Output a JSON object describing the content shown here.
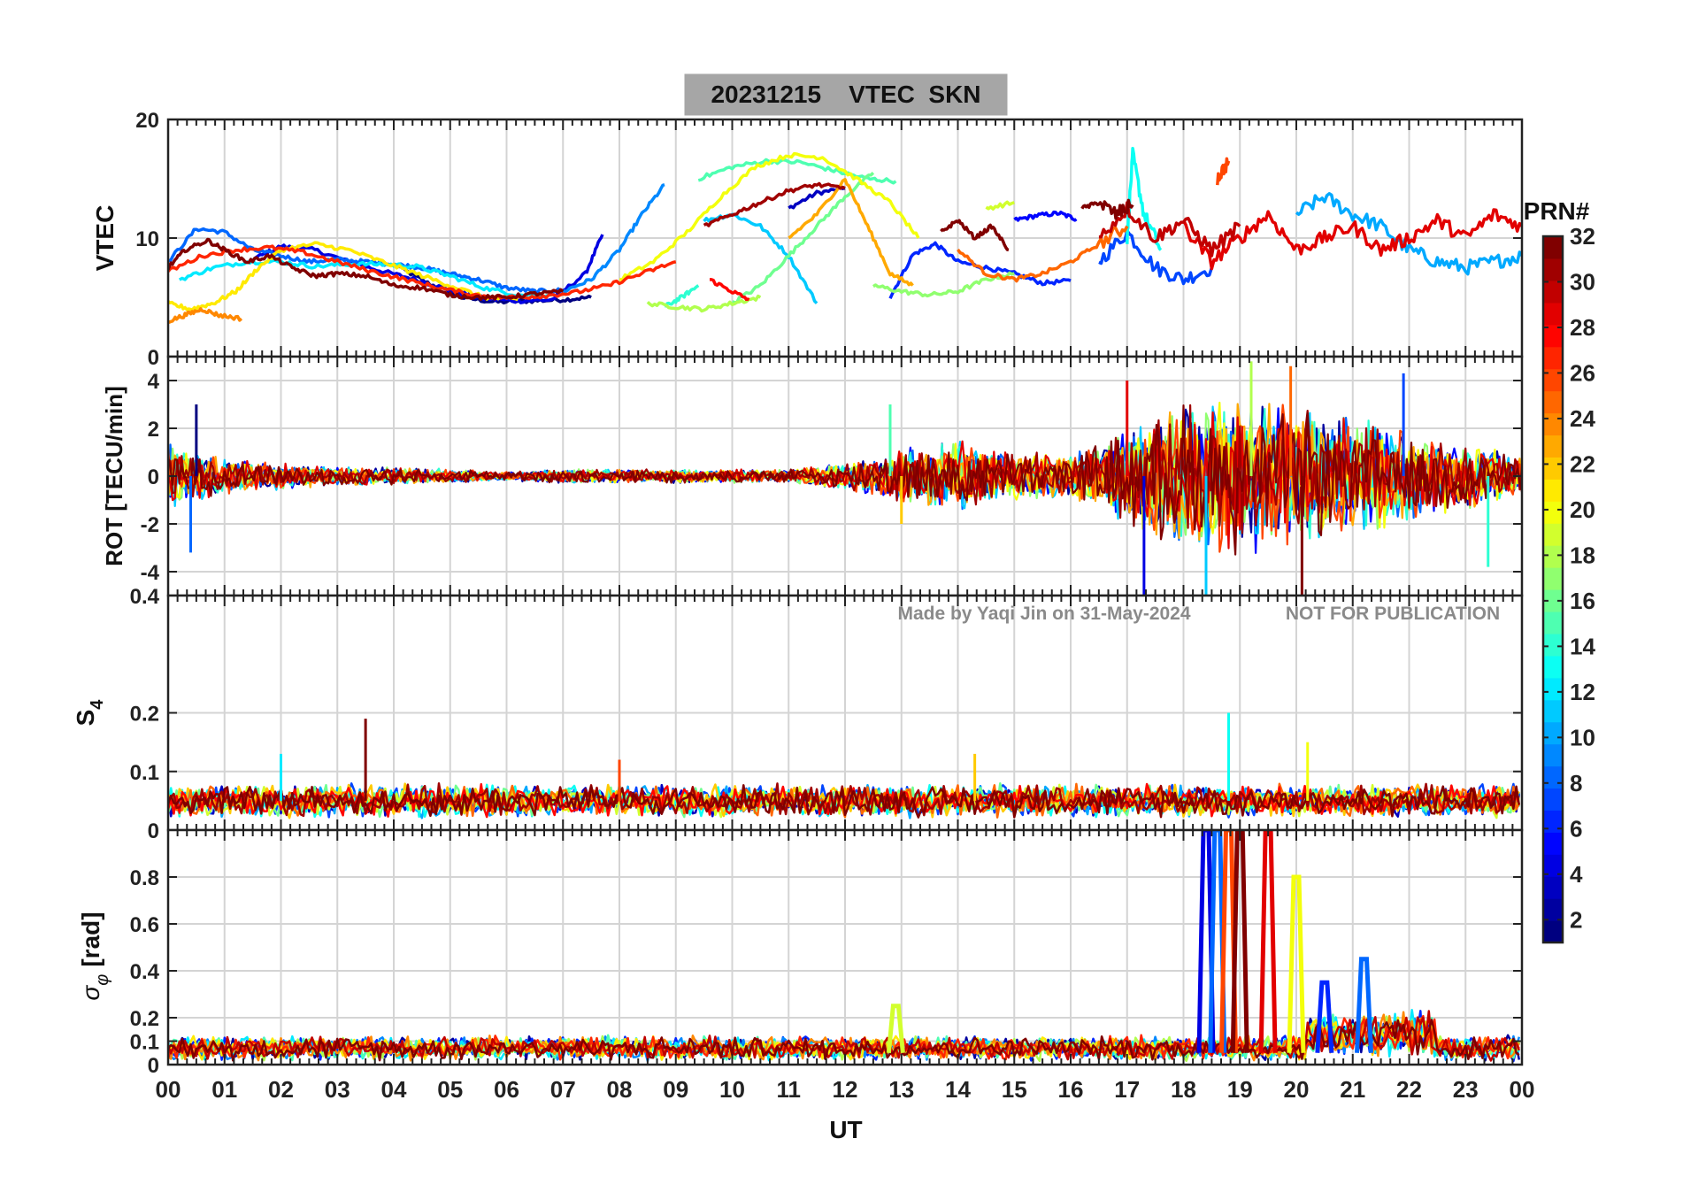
{
  "title": "20231215    VTEC  SKN",
  "watermark_left": "Made by Yaqi Jin on 31-May-2024",
  "watermark_right": "NOT FOR PUBLICATION",
  "colorbar": {
    "label": "PRN#",
    "ticks": [
      "2",
      "4",
      "6",
      "8",
      "10",
      "12",
      "14",
      "16",
      "18",
      "20",
      "22",
      "24",
      "26",
      "28",
      "30",
      "32"
    ],
    "range": [
      1,
      32
    ],
    "colormap": "jet"
  },
  "x_axis": {
    "label": "UT",
    "range": [
      0,
      24
    ],
    "ticks": [
      "00",
      "01",
      "02",
      "03",
      "04",
      "05",
      "06",
      "07",
      "08",
      "09",
      "10",
      "11",
      "12",
      "13",
      "14",
      "15",
      "16",
      "17",
      "18",
      "19",
      "20",
      "21",
      "22",
      "23",
      "00"
    ]
  },
  "panels": {
    "vtec": {
      "ylabel": "VTEC",
      "ylim": [
        0,
        20
      ],
      "ticks": [
        "0",
        "10",
        "20"
      ],
      "tick_values": [
        0,
        10,
        20
      ]
    },
    "rot": {
      "ylabel": "ROT [TECU/min]",
      "ylim": [
        -5,
        5
      ],
      "ticks": [
        "-4",
        "-2",
        "0",
        "2",
        "4"
      ],
      "tick_values": [
        -4,
        -2,
        0,
        2,
        4
      ]
    },
    "s4": {
      "ylabel_main": "S",
      "ylabel_sub": "4",
      "ylim": [
        0,
        0.4
      ],
      "ticks": [
        "0",
        "0.1",
        "0.2",
        "0.4"
      ],
      "tick_values": [
        0,
        0.1,
        0.2,
        0.4
      ]
    },
    "sigma": {
      "ylabel_main": "σ",
      "ylabel_sub": "φ",
      "ylabel_unit": "[rad]",
      "ylim": [
        0,
        1
      ],
      "ticks": [
        "0",
        "0.1",
        "0.2",
        "0.4",
        "0.6",
        "0.8"
      ],
      "tick_values": [
        0,
        0.1,
        0.2,
        0.4,
        0.6,
        0.8
      ]
    }
  },
  "chart_data": {
    "type": "line",
    "title": "20231215    VTEC  SKN",
    "xlabel": "UT",
    "xlim": [
      0,
      24
    ],
    "series_color_by": "PRN#",
    "vtec_arcs": [
      {
        "prn": 1,
        "x": [
          4.0,
          4.6,
          5.2,
          5.8,
          6.4,
          7.0,
          7.5
        ],
        "y": [
          7.8,
          6.2,
          5.0,
          4.6,
          4.7,
          4.8,
          5.0
        ]
      },
      {
        "prn": 3,
        "x": [
          11.0,
          11.5,
          12.0
        ],
        "y": [
          12.5,
          13.8,
          14.2
        ]
      },
      {
        "prn": 4,
        "x": [
          1.5,
          2.0,
          2.6,
          3.2,
          3.8,
          4.4,
          5.0,
          5.6,
          6.2,
          6.8,
          7.4,
          7.7
        ],
        "y": [
          8.2,
          9.3,
          9.0,
          8.0,
          7.2,
          6.5,
          5.6,
          4.9,
          4.7,
          4.8,
          7.0,
          10.3
        ]
      },
      {
        "prn": 5,
        "x": [
          15.0,
          15.4,
          15.8,
          16.1
        ],
        "y": [
          11.5,
          11.9,
          12.1,
          11.6
        ]
      },
      {
        "prn": 6,
        "x": [
          12.8,
          13.2,
          13.6,
          14.0,
          14.5,
          15.0,
          15.5,
          16.0
        ],
        "y": [
          5.0,
          8.6,
          9.5,
          8.0,
          7.5,
          7.0,
          6.2,
          6.4
        ]
      },
      {
        "prn": 7,
        "x": [
          16.5,
          17.0,
          17.5,
          18.0,
          18.5
        ],
        "y": [
          8.0,
          10.5,
          7.5,
          6.5,
          7.5
        ]
      },
      {
        "prn": 8,
        "x": [
          0.0,
          0.5,
          1.0,
          1.5,
          2.0,
          2.5,
          3.0,
          3.5,
          4.0,
          4.5,
          5.0,
          5.5,
          6.0,
          6.5,
          7.0
        ],
        "y": [
          8.0,
          10.8,
          10.5,
          9.0,
          8.5,
          8.0,
          8.2,
          8.0,
          7.8,
          7.5,
          7.0,
          6.5,
          5.8,
          5.5,
          5.6
        ]
      },
      {
        "prn": 9,
        "x": [
          7.0,
          7.5,
          8.0,
          8.4,
          8.8
        ],
        "y": [
          5.5,
          6.5,
          9.0,
          12.0,
          14.5
        ]
      },
      {
        "prn": 10,
        "x": [
          20.0,
          20.5,
          21.0,
          21.5,
          22.0,
          22.5,
          23.0,
          23.5,
          24.0
        ],
        "y": [
          12.0,
          13.5,
          12.0,
          11.0,
          9.0,
          8.0,
          7.5,
          8.0,
          8.5
        ]
      },
      {
        "prn": 11,
        "x": [
          9.5,
          10.0,
          10.5,
          11.0,
          11.5
        ],
        "y": [
          11.5,
          12.0,
          11.0,
          8.5,
          4.5
        ]
      },
      {
        "prn": 12,
        "x": [
          0.2,
          0.8,
          1.4,
          2.0,
          2.6,
          3.2,
          3.8,
          4.4,
          5.0,
          5.6,
          6.2,
          6.8
        ],
        "y": [
          6.5,
          7.5,
          8.0,
          8.0,
          7.6,
          7.8,
          7.8,
          7.6,
          6.8,
          5.8,
          5.2,
          5.2
        ]
      },
      {
        "prn": 13,
        "x": [
          17.0,
          17.1,
          17.3,
          17.6
        ],
        "y": [
          10.0,
          17.0,
          12.0,
          9.0
        ]
      },
      {
        "prn": 14,
        "x": [
          8.8,
          9.1,
          9.4
        ],
        "y": [
          4.2,
          5.0,
          6.0
        ]
      },
      {
        "prn": 15,
        "x": [
          9.4,
          10.0,
          10.6,
          11.2,
          11.8,
          12.4,
          12.9
        ],
        "y": [
          15.0,
          16.0,
          16.5,
          16.4,
          15.7,
          15.0,
          14.8
        ]
      },
      {
        "prn": 16,
        "x": [
          10.0,
          10.5,
          11.0,
          11.5,
          12.0,
          12.5
        ],
        "y": [
          4.5,
          6.0,
          8.5,
          11.0,
          13.5,
          15.5
        ]
      },
      {
        "prn": 17,
        "x": [
          12.5,
          13.0,
          13.5,
          14.0,
          14.5,
          15.0
        ],
        "y": [
          6.0,
          5.5,
          5.2,
          5.5,
          6.5,
          7.0
        ]
      },
      {
        "prn": 18,
        "x": [
          8.5,
          9.0,
          9.5,
          10.0,
          10.5
        ],
        "y": [
          4.5,
          4.2,
          4.0,
          4.5,
          5.0
        ]
      },
      {
        "prn": 19,
        "x": [
          14.5,
          15.0
        ],
        "y": [
          12.5,
          13.0
        ]
      },
      {
        "prn": 20,
        "x": [
          8.0,
          8.6,
          9.2,
          9.8,
          10.4,
          11.0,
          11.6,
          12.2,
          12.8,
          13.3
        ],
        "y": [
          6.5,
          8.0,
          10.5,
          13.5,
          16.0,
          17.0,
          16.8,
          15.0,
          13.0,
          10.0
        ]
      },
      {
        "prn": 21,
        "x": [
          0.0,
          0.4,
          0.8,
          1.2,
          1.6,
          2.0,
          2.6,
          3.2,
          3.8,
          4.4,
          5.0,
          5.6,
          6.2
        ],
        "y": [
          4.5,
          4.0,
          4.5,
          5.5,
          7.5,
          9.0,
          9.5,
          9.0,
          8.0,
          7.0,
          6.0,
          5.0,
          4.8
        ]
      },
      {
        "prn": 23,
        "x": [
          11.0,
          11.5,
          12.0,
          12.4,
          12.8,
          13.2
        ],
        "y": [
          10.0,
          12.0,
          15.0,
          11.0,
          7.0,
          6.0
        ]
      },
      {
        "prn": 24,
        "x": [
          0.0,
          0.3,
          0.6,
          0.9,
          1.3
        ],
        "y": [
          3.0,
          3.5,
          4.0,
          3.5,
          3.2
        ]
      },
      {
        "prn": 25,
        "x": [
          14.0,
          14.5,
          15.0,
          15.5,
          16.0,
          16.5,
          17.0
        ],
        "y": [
          9.0,
          7.0,
          6.5,
          7.0,
          8.0,
          9.5,
          11.0
        ]
      },
      {
        "prn": 26,
        "x": [
          18.6,
          18.8
        ],
        "y": [
          15.0,
          16.5
        ]
      },
      {
        "prn": 27,
        "x": [
          0.0,
          0.6,
          1.2,
          1.8,
          2.4,
          3.0,
          3.6,
          4.2,
          4.8,
          5.4,
          6.0,
          6.6,
          7.2,
          7.8,
          8.4,
          9.0
        ],
        "y": [
          7.2,
          8.5,
          9.0,
          9.2,
          8.8,
          8.0,
          7.2,
          6.5,
          5.8,
          5.2,
          5.0,
          5.1,
          5.4,
          6.0,
          7.0,
          8.0
        ]
      },
      {
        "prn": 28,
        "x": [
          9.6,
          10.0,
          10.3
        ],
        "y": [
          6.5,
          5.5,
          4.8
        ]
      },
      {
        "prn": 29,
        "x": [
          18.0,
          18.5,
          19.0,
          19.5,
          20.0,
          20.5,
          21.0,
          21.5,
          22.0,
          22.5,
          23.0,
          23.5,
          24.0
        ],
        "y": [
          11.0,
          8.0,
          10.0,
          12.0,
          9.0,
          10.0,
          11.0,
          9.0,
          10.0,
          11.5,
          10.0,
          12.0,
          11.0
        ]
      },
      {
        "prn": 30,
        "x": [
          16.5,
          17.0,
          17.5,
          18.0,
          18.5,
          19.0
        ],
        "y": [
          10.0,
          12.5,
          10.0,
          11.5,
          9.0,
          11.0
        ]
      },
      {
        "prn": 31,
        "x": [
          9.5,
          10.0,
          10.5,
          11.0,
          11.5,
          12.0
        ],
        "y": [
          11.0,
          12.0,
          13.0,
          14.0,
          14.5,
          14.2
        ]
      },
      {
        "prn": 32,
        "x": [
          0.0,
          0.3,
          0.7,
          1.0,
          1.4,
          1.8,
          2.2,
          2.6,
          3.0,
          3.5,
          4.0,
          4.5,
          5.0,
          5.5,
          6.0,
          6.5,
          7.0
        ],
        "y": [
          7.5,
          9.0,
          9.8,
          9.0,
          8.0,
          8.5,
          7.5,
          6.8,
          7.0,
          6.8,
          6.0,
          5.8,
          5.2,
          5.0,
          5.0,
          5.3,
          5.5
        ]
      },
      {
        "prn": 32,
        "x": [
          13.7,
          14.0,
          14.3,
          14.6,
          14.9
        ],
        "y": [
          10.5,
          11.5,
          10.0,
          11.0,
          9.0
        ]
      },
      {
        "prn": 32,
        "x": [
          16.2,
          16.5,
          16.8,
          17.1
        ],
        "y": [
          12.5,
          13.0,
          12.0,
          12.8
        ]
      }
    ],
    "rot_envelope": {
      "x": [
        0,
        1,
        2,
        3,
        4,
        5,
        6,
        7,
        8,
        9,
        10,
        11,
        12,
        13,
        14,
        15,
        16,
        17,
        18,
        19,
        20,
        21,
        22,
        23,
        24
      ],
      "amplitude": [
        1.5,
        0.8,
        0.6,
        0.4,
        0.4,
        0.3,
        0.2,
        0.3,
        0.3,
        0.3,
        0.3,
        0.3,
        0.6,
        1.2,
        1.6,
        1.0,
        1.0,
        2.2,
        3.5,
        3.5,
        3.0,
        2.5,
        2.0,
        1.5,
        0.8
      ]
    },
    "rot_peaks": [
      {
        "x": 0.5,
        "y": 3.0
      },
      {
        "x": 0.4,
        "y": -3.2
      },
      {
        "x": 12.8,
        "y": 3.0
      },
      {
        "x": 13.0,
        "y": -2.0
      },
      {
        "x": 17.0,
        "y": 4.0
      },
      {
        "x": 17.3,
        "y": -5.0
      },
      {
        "x": 18.4,
        "y": -5.5
      },
      {
        "x": 19.2,
        "y": 4.8
      },
      {
        "x": 19.9,
        "y": 4.6
      },
      {
        "x": 20.1,
        "y": -5.0
      },
      {
        "x": 21.9,
        "y": 4.3
      },
      {
        "x": 23.4,
        "y": -3.8
      }
    ],
    "s4_baseline": {
      "mean": 0.05,
      "spread": 0.02
    },
    "s4_peaks": [
      {
        "x": 2.0,
        "y": 0.13
      },
      {
        "x": 3.5,
        "y": 0.19
      },
      {
        "x": 8.0,
        "y": 0.12
      },
      {
        "x": 14.3,
        "y": 0.13
      },
      {
        "x": 18.8,
        "y": 0.2
      },
      {
        "x": 20.2,
        "y": 0.15
      }
    ],
    "sigma_baseline": {
      "mean": 0.07,
      "spread": 0.04
    },
    "sigma_peaks": [
      {
        "x": 18.4,
        "y": 1.0
      },
      {
        "x": 18.6,
        "y": 1.0
      },
      {
        "x": 18.8,
        "y": 1.0
      },
      {
        "x": 19.0,
        "y": 1.0
      },
      {
        "x": 19.5,
        "y": 1.0
      },
      {
        "x": 20.0,
        "y": 0.8
      },
      {
        "x": 20.5,
        "y": 0.35
      },
      {
        "x": 21.2,
        "y": 0.45
      },
      {
        "x": 12.9,
        "y": 0.25
      }
    ]
  }
}
